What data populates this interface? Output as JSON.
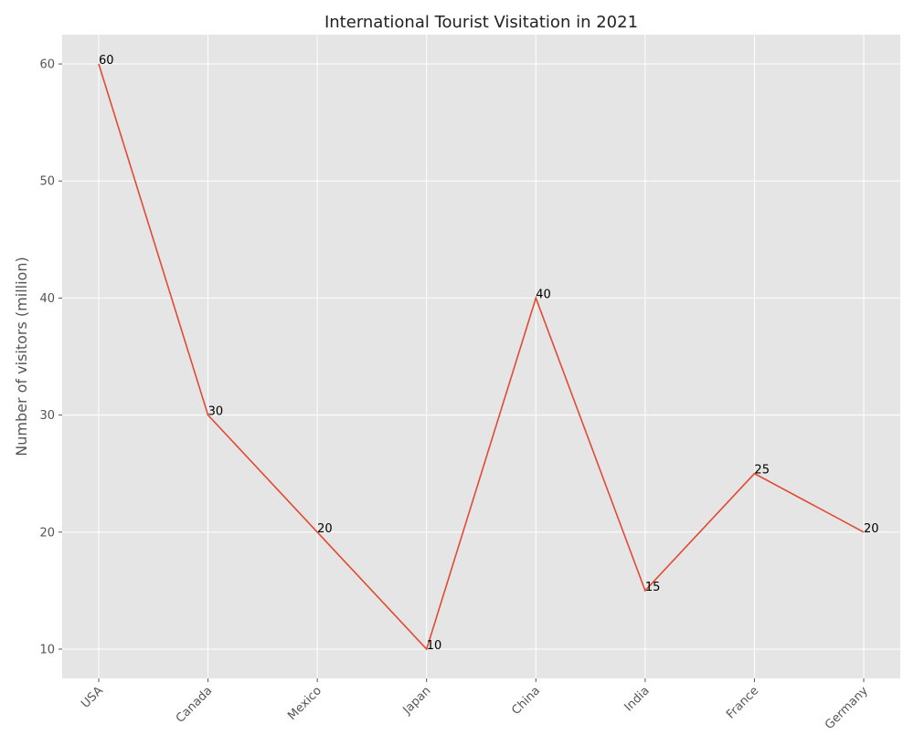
{
  "chart_data": {
    "type": "line",
    "title": "International Tourist Visitation in 2021",
    "xlabel": "",
    "ylabel": "Number of visitors (million)",
    "categories": [
      "USA",
      "Canada",
      "Mexico",
      "Japan",
      "China",
      "India",
      "France",
      "Germany"
    ],
    "series": [
      {
        "values": [
          60,
          30,
          20,
          10,
          40,
          15,
          25,
          20
        ]
      }
    ],
    "ylim": [
      7.5,
      62.5
    ],
    "yticks": [
      10,
      20,
      30,
      40,
      50,
      60
    ],
    "grid": true,
    "data_labels": true,
    "xtick_rotation": 45,
    "colors": {
      "background": "#e5e5e5",
      "line": "#e24a33",
      "grid": "#ffffff"
    }
  }
}
